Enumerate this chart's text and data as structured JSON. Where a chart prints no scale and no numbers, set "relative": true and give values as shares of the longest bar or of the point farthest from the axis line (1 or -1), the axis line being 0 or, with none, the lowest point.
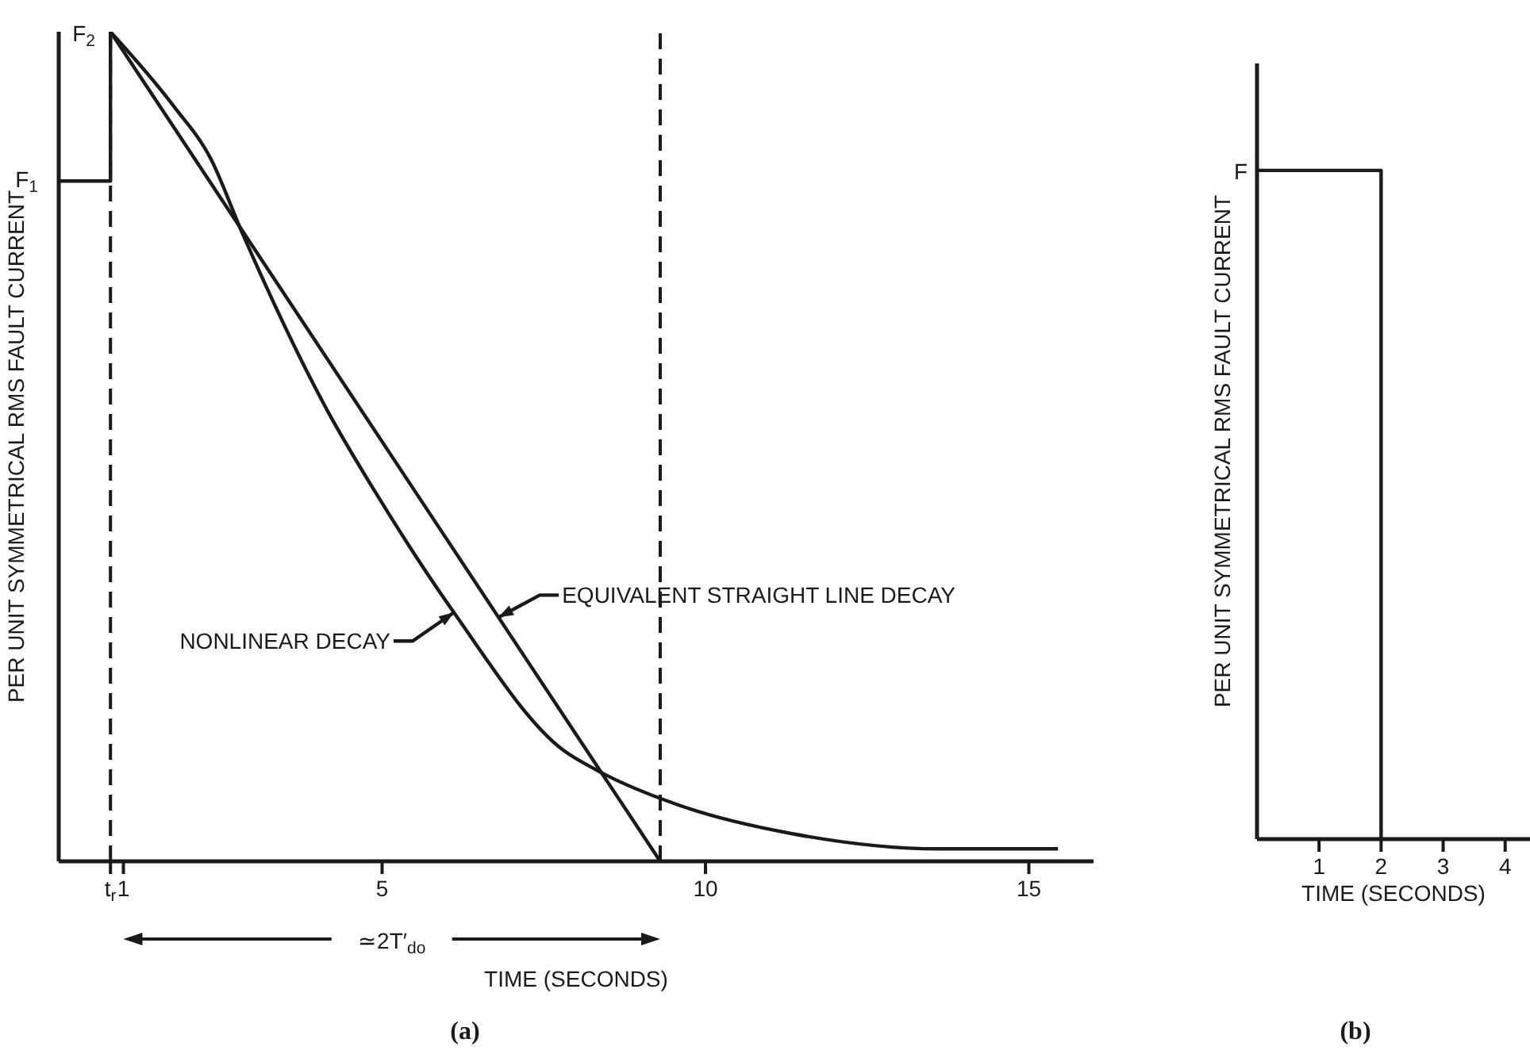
{
  "chart_data": [
    {
      "type": "line",
      "xlabel": "TIME (SECONDS)",
      "ylabel": "PER UNIT SYMMETRICAL RMS FAULT CURRENT",
      "relative": true,
      "xlim": [
        0,
        16
      ],
      "xticks": [
        {
          "value": 0.8,
          "label": "t$_{r}$"
        },
        1,
        5,
        10,
        15
      ],
      "series": [
        {
          "color": "#1a1a1a",
          "x": [
            0,
            0.8,
            0.8
          ],
          "values": [
            0.82,
            0.82,
            1
          ]
        },
        {
          "name": "NONLINEAR DECAY",
          "color": "#1a1a1a",
          "x": [
            0.8,
            1.78,
            2.35,
            2.84,
            4.17,
            4.88,
            6.11,
            7.8,
            8.34,
            9.69,
            11.36,
            13.6,
            15.45
          ],
          "values": [
            1,
            0.91,
            0.847,
            0.757,
            0.541,
            0.447,
            0.3,
            0.134,
            0.109,
            0.065,
            0.033,
            0.015,
            0.015
          ]
        },
        {
          "name": "EQUIVALENT STRAIGHT LINE DECAY",
          "color": "#1a1a1a",
          "x": [
            0.8,
            9.3
          ],
          "values": [
            1,
            0
          ]
        }
      ],
      "ref_lines": [
        {
          "axis": "x",
          "value": 0.8,
          "line_style": "dashed",
          "color": "#1a1a1a"
        },
        {
          "axis": "x",
          "value": 9.3,
          "line_style": "dashed",
          "color": "#1a1a1a"
        }
      ],
      "annotations": [
        "F$_{2}$",
        "F$_{1}$",
        "≃2T′$_{do}$",
        "(a)"
      ]
    },
    {
      "type": "line",
      "xlabel": "TIME (SECONDS)",
      "ylabel": "PER UNIT SYMMETRICAL RMS FAULT CURRENT",
      "relative": true,
      "xlim": [
        0,
        4.4
      ],
      "xticks": [
        1,
        2,
        3,
        4
      ],
      "series": [
        {
          "color": "#1a1a1a",
          "x": [
            0,
            2,
            2
          ],
          "values": [
            1,
            1,
            0
          ]
        }
      ],
      "annotations": [
        "F",
        "(b)"
      ]
    }
  ]
}
